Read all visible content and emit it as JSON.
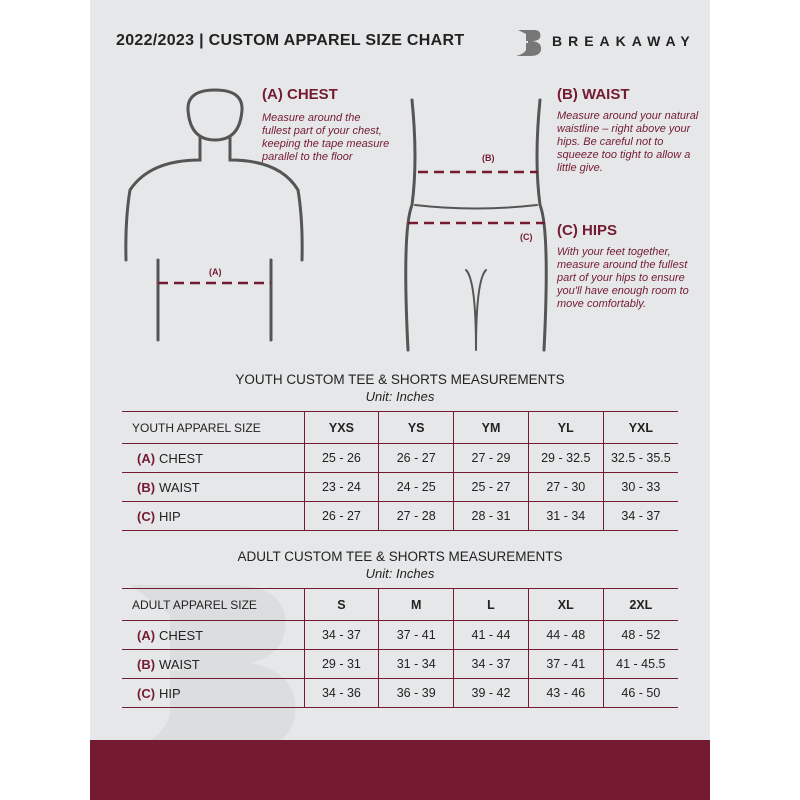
{
  "header": {
    "title": "2022/2023  |  CUSTOM APPAREL SIZE CHART",
    "brand": "BREAKAWAY"
  },
  "measures": {
    "chest": {
      "heading": "(A) CHEST",
      "text": "Measure around the fullest part of your chest, keeping the tape measure parallel to the floor",
      "label": "(A)"
    },
    "waist": {
      "heading": "(B) WAIST",
      "text": "Measure around your natural waistline – right above your hips. Be careful not to squeeze too tight to allow a little give.",
      "label": "(B)"
    },
    "hips": {
      "heading": "(C) HIPS",
      "text": "With your feet together, measure around the fullest part of your hips to ensure you'll have enough room to move comfortably.",
      "label": "(C)"
    }
  },
  "youth": {
    "title": "YOUTH CUSTOM TEE & SHORTS MEASUREMENTS",
    "unit": "Unit: Inches",
    "header": [
      "YOUTH APPAREL SIZE",
      "YXS",
      "YS",
      "YM",
      "YL",
      "YXL"
    ],
    "rows": [
      {
        "code": "(A)",
        "name": "CHEST",
        "values": [
          "25 - 26",
          "26 - 27",
          "27 - 29",
          "29 - 32.5",
          "32.5 - 35.5"
        ]
      },
      {
        "code": "(B)",
        "name": "WAIST",
        "values": [
          "23 - 24",
          "24 - 25",
          "25 - 27",
          "27 - 30",
          "30 - 33"
        ]
      },
      {
        "code": "(C)",
        "name": "HIP",
        "values": [
          "26 - 27",
          "27 - 28",
          "28 - 31",
          "31 - 34",
          "34 - 37"
        ]
      }
    ]
  },
  "adult": {
    "title": "ADULT CUSTOM TEE & SHORTS MEASUREMENTS",
    "unit": "Unit: Inches",
    "header": [
      "ADULT APPAREL SIZE",
      "S",
      "M",
      "L",
      "XL",
      "2XL"
    ],
    "rows": [
      {
        "code": "(A)",
        "name": "CHEST",
        "values": [
          "34 - 37",
          "37 - 41",
          "41 - 44",
          "44 - 48",
          "48 - 52"
        ]
      },
      {
        "code": "(B)",
        "name": "WAIST",
        "values": [
          "29 - 31",
          "31 - 34",
          "34 - 37",
          "37 - 41",
          "41 - 45.5"
        ]
      },
      {
        "code": "(C)",
        "name": "HIP",
        "values": [
          "34 - 36",
          "36 - 39",
          "39 - 42",
          "43 - 46",
          "46 - 50"
        ]
      }
    ]
  },
  "colors": {
    "accent": "#741b32",
    "background": "#e6e7e8"
  },
  "watermark": "B"
}
